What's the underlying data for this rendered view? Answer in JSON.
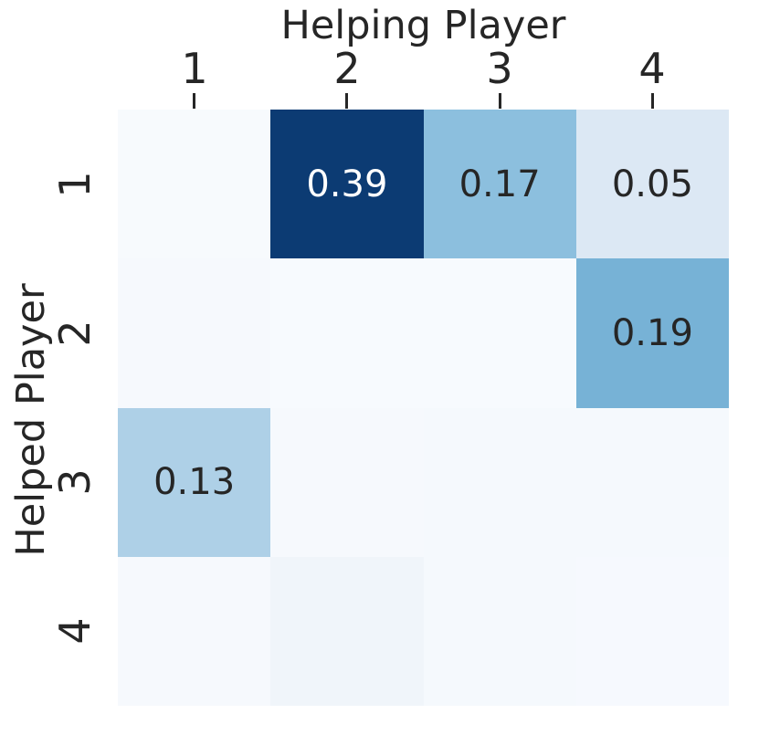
{
  "figure": {
    "background": "#ffffff",
    "text_color": "#262626"
  },
  "chart_data": {
    "type": "heatmap",
    "title": "Helping Player",
    "xlabel": "Helping Player",
    "ylabel": "Helped Player",
    "x_categories": [
      "1",
      "2",
      "3",
      "4"
    ],
    "y_categories": [
      "1",
      "2",
      "3",
      "4"
    ],
    "matrix": [
      [
        null,
        0.39,
        0.17,
        0.05
      ],
      [
        null,
        null,
        null,
        0.19
      ],
      [
        0.13,
        null,
        null,
        null
      ],
      [
        null,
        null,
        null,
        null
      ]
    ],
    "labels": [
      [
        "",
        "0.39",
        "0.17",
        "0.05"
      ],
      [
        "",
        "",
        "",
        "0.19"
      ],
      [
        "0.13",
        "",
        "",
        ""
      ],
      [
        "",
        "",
        "",
        ""
      ]
    ],
    "cell_colors": [
      [
        "#f7fafd",
        "#0c3b73",
        "#8cbfde",
        "#dce8f4"
      ],
      [
        "#f6f9fd",
        "#f7fafe",
        "#f7fafe",
        "#77b2d6"
      ],
      [
        "#aed0e7",
        "#f6f9fd",
        "#f5f9fd",
        "#f5f9fd"
      ],
      [
        "#f6f9fd",
        "#f0f5fa",
        "#f5f9fd",
        "#f6f9fe"
      ]
    ],
    "text_colors": [
      [
        "",
        "#ffffff",
        "#262626",
        "#262626"
      ],
      [
        "",
        "",
        "",
        "#262626"
      ],
      [
        "#262626",
        "",
        "",
        ""
      ],
      [
        "",
        "",
        "",
        ""
      ]
    ],
    "colormap": "Blues",
    "vmin": 0,
    "vmax": 0.4,
    "legend": "none",
    "grid": false
  }
}
